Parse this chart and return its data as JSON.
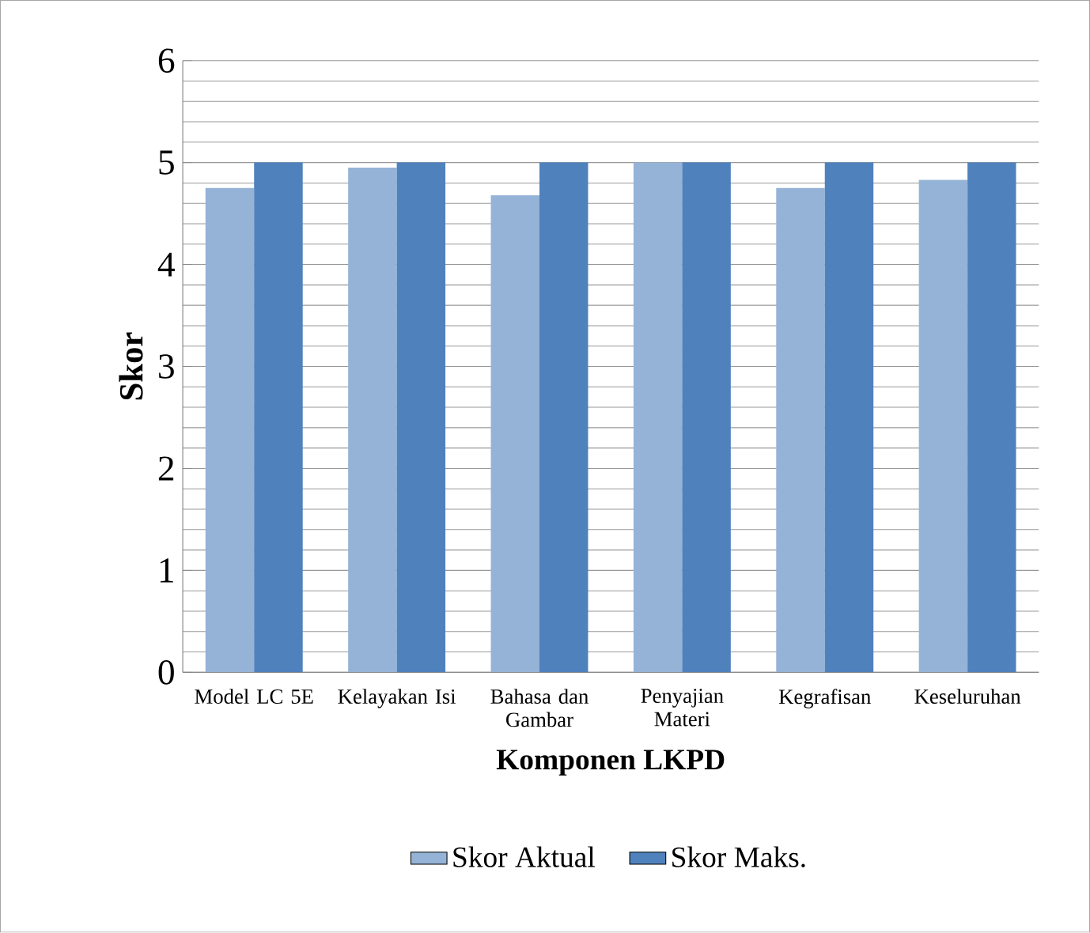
{
  "chart_data": {
    "type": "bar",
    "xlabel": "Komponen LKPD",
    "ylabel": "Skor",
    "categories": [
      "Model LC 5E",
      "Kelayakan Isi",
      "Bahasa dan Gambar",
      "Penyajian Materi",
      "Kegrafisan",
      "Keseluruhan"
    ],
    "series": [
      {
        "name": "Skor Aktual",
        "color": "#95b3d7",
        "values": [
          4.75,
          4.95,
          4.68,
          5.0,
          4.75,
          4.83
        ]
      },
      {
        "name": "Skor Maks.",
        "color": "#4f81bd",
        "values": [
          5,
          5,
          5,
          5,
          5,
          5
        ]
      }
    ],
    "ylim": [
      0,
      6
    ],
    "yticks": [
      0,
      1,
      2,
      3,
      4,
      5,
      6
    ],
    "grid": "y",
    "legend": "bottom"
  }
}
